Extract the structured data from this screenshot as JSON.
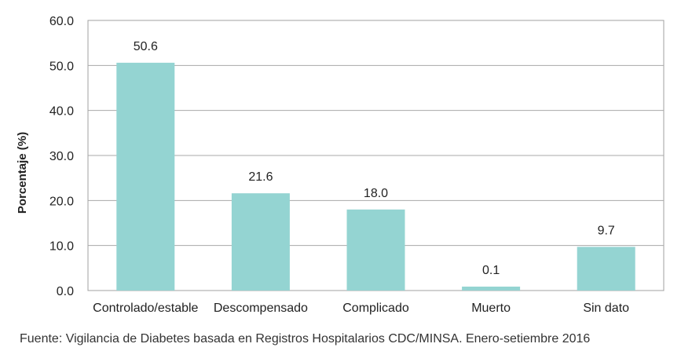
{
  "chart_data": {
    "type": "bar",
    "categories": [
      "Controlado/estable",
      "Descompensado",
      "Complicado",
      "Muerto",
      "Sin dato"
    ],
    "values": [
      50.6,
      21.6,
      18.0,
      0.1,
      9.7
    ],
    "value_labels": [
      "50.6",
      "21.6",
      "18.0",
      "0.1",
      "9.7"
    ],
    "ylabel": "Porcentaje (%)",
    "xlabel": "",
    "ylim": [
      0,
      60
    ],
    "yticks": [
      "0.0",
      "10.0",
      "20.0",
      "30.0",
      "40.0",
      "50.0",
      "60.0"
    ],
    "bar_color": "#94d4d2",
    "grid": true,
    "legend": "none"
  },
  "source_note": "Fuente: Vigilancia de Diabetes basada en Registros Hospitalarios CDC/MINSA. Enero-setiembre 2016"
}
